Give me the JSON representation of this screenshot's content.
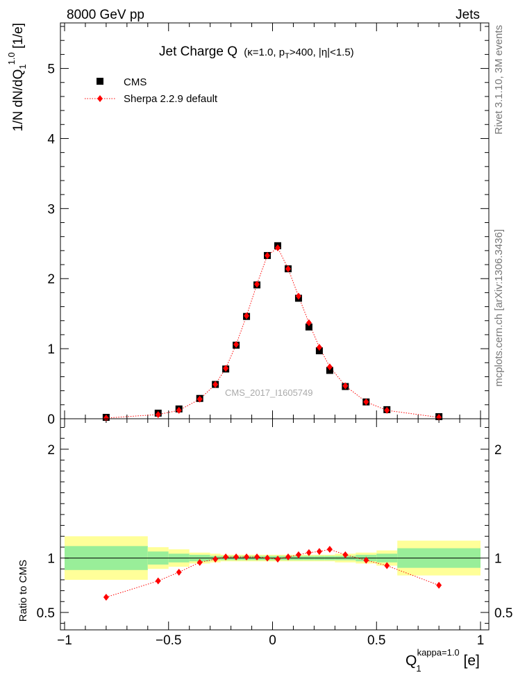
{
  "header": {
    "left": "8000 GeV pp",
    "right": "Jets"
  },
  "side_labels": {
    "top": "Rivet 3.1.10,  3M events",
    "bottom": "mcplots.cern.ch [arXiv:1306.3436]"
  },
  "watermark": "CMS_2017_I1605749",
  "chart_data": [
    {
      "type": "scatter",
      "panel": "main",
      "title_main": "Jet Charge Q",
      "title_kappa": "(κ=1.0, p",
      "title_sub": "T",
      "title_rest": ">400, |η|<1.5)",
      "ylabel": {
        "main": "1/N dN/dQ",
        "sub": "1",
        "sup": "1.0",
        "unit": " [1/e]"
      },
      "xlim": [
        -1.02,
        1.04
      ],
      "ylim": [
        0,
        5.65
      ],
      "yticks": [
        0,
        1,
        2,
        3,
        4,
        5
      ],
      "ytick_labels": [
        "0",
        "1",
        "2",
        "3",
        "4",
        "5"
      ],
      "legend_position": "top-left",
      "x": [
        -0.8,
        -0.55,
        -0.45,
        -0.35,
        -0.275,
        -0.225,
        -0.175,
        -0.125,
        -0.075,
        -0.025,
        0.025,
        0.075,
        0.125,
        0.175,
        0.225,
        0.275,
        0.35,
        0.45,
        0.55,
        0.8
      ],
      "series": [
        {
          "name": "CMS",
          "color": "#000000",
          "marker": "square",
          "values": [
            0.02,
            0.08,
            0.14,
            0.29,
            0.49,
            0.71,
            1.05,
            1.46,
            1.91,
            2.33,
            2.47,
            2.14,
            1.72,
            1.31,
            0.97,
            0.69,
            0.46,
            0.24,
            0.13,
            0.03
          ]
        },
        {
          "name": "Sherpa 2.2.9 default",
          "color": "#ff0000",
          "marker": "diamond",
          "line": "dotted",
          "values": [
            0.01,
            0.06,
            0.12,
            0.28,
            0.49,
            0.72,
            1.06,
            1.47,
            1.92,
            2.33,
            2.44,
            2.14,
            1.75,
            1.37,
            1.02,
            0.74,
            0.47,
            0.24,
            0.12,
            0.02
          ]
        }
      ]
    },
    {
      "type": "line",
      "panel": "ratio",
      "ylabel": "Ratio to CMS",
      "xlabel": {
        "main": "Q",
        "sub": "1",
        "sup": "kappa=1.0",
        "unit": " [e]"
      },
      "xlim": [
        -1.02,
        1.04
      ],
      "ylim": [
        0.34,
        2.28
      ],
      "xticks": [
        -1,
        -0.5,
        0,
        0.5,
        1
      ],
      "xtick_labels": [
        "−1",
        "−0.5",
        "0",
        "0.5",
        "1"
      ],
      "yticks": [
        0.5,
        1,
        2
      ],
      "ytick_labels": [
        "0.5",
        "1",
        "2"
      ],
      "x": [
        -0.8,
        -0.55,
        -0.45,
        -0.35,
        -0.275,
        -0.225,
        -0.175,
        -0.125,
        -0.075,
        -0.025,
        0.025,
        0.075,
        0.125,
        0.175,
        0.225,
        0.275,
        0.35,
        0.45,
        0.55,
        0.8
      ],
      "series": [
        {
          "name": "Sherpa 2.2.9 default",
          "color": "#ff0000",
          "values": [
            0.64,
            0.79,
            0.87,
            0.96,
            0.99,
            1.01,
            1.01,
            1.01,
            1.01,
            1.0,
            0.99,
            1.01,
            1.03,
            1.05,
            1.06,
            1.08,
            1.03,
            0.98,
            0.93,
            0.75
          ]
        }
      ],
      "bands": {
        "edges": [
          -1.0,
          -0.6,
          -0.5,
          -0.4,
          -0.3,
          -0.25,
          -0.2,
          -0.15,
          -0.1,
          -0.05,
          0.0,
          0.05,
          0.1,
          0.15,
          0.2,
          0.25,
          0.3,
          0.4,
          0.5,
          0.6,
          1.0
        ],
        "stat": [
          0.11,
          0.06,
          0.04,
          0.03,
          0.02,
          0.02,
          0.02,
          0.02,
          0.02,
          0.02,
          0.02,
          0.02,
          0.02,
          0.02,
          0.02,
          0.02,
          0.02,
          0.03,
          0.04,
          0.09
        ],
        "total": [
          0.2,
          0.1,
          0.08,
          0.05,
          0.04,
          0.03,
          0.03,
          0.03,
          0.03,
          0.03,
          0.03,
          0.03,
          0.03,
          0.03,
          0.03,
          0.03,
          0.04,
          0.05,
          0.07,
          0.16
        ],
        "stat_color": "#99ee99",
        "total_color": "#ffff99"
      }
    }
  ]
}
